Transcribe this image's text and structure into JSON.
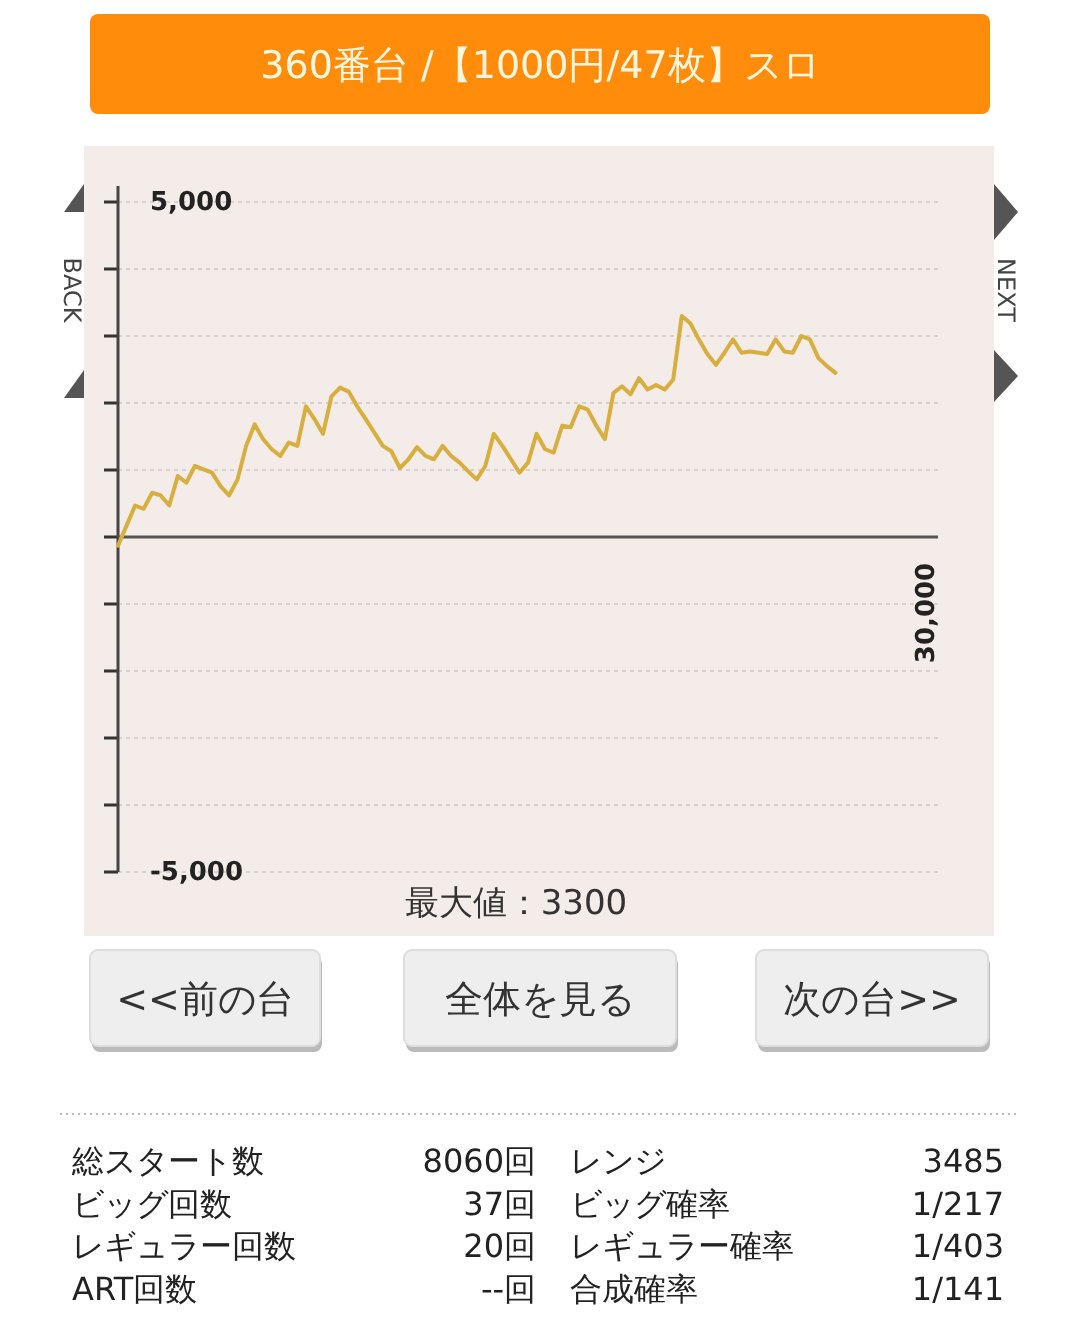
{
  "chart_data": {
    "type": "line",
    "title": "360番台 /【1000円/47枚】スロ",
    "categories": [
      null,
      null,
      null,
      null,
      null,
      null,
      null,
      null,
      null,
      null,
      null,
      null,
      null,
      null,
      null,
      null,
      null,
      null,
      null,
      null,
      null,
      null,
      null,
      null,
      null,
      null,
      null,
      null,
      null,
      null,
      null,
      null,
      null,
      null,
      null,
      null,
      null,
      null,
      null,
      null,
      null,
      null,
      null,
      null,
      null,
      null,
      null,
      null,
      null,
      null,
      null,
      null,
      null,
      null,
      null,
      null,
      null,
      null,
      null,
      null,
      null,
      null,
      null,
      null,
      null,
      null,
      null,
      null,
      null,
      null,
      null,
      null,
      null,
      null,
      null,
      null,
      null,
      null,
      null,
      null,
      null,
      null,
      null,
      null,
      null
    ],
    "values": [
      -130,
      170,
      470,
      420,
      660,
      620,
      470,
      910,
      810,
      1060,
      1010,
      960,
      760,
      620,
      860,
      1360,
      1680,
      1460,
      1310,
      1210,
      1410,
      1360,
      1950,
      1760,
      1540,
      2100,
      2230,
      2170,
      1950,
      1760,
      1560,
      1360,
      1280,
      1030,
      1160,
      1340,
      1210,
      1160,
      1360,
      1210,
      1110,
      980,
      860,
      1060,
      1540,
      1360,
      1160,
      960,
      1110,
      1540,
      1310,
      1260,
      1660,
      1640,
      1950,
      1900,
      1660,
      1460,
      2150,
      2250,
      2130,
      2370,
      2200,
      2270,
      2200,
      2350,
      3300,
      3190,
      2950,
      2730,
      2570,
      2750,
      2950,
      2750,
      2770,
      2750,
      2730,
      2950,
      2770,
      2750,
      3000,
      2950,
      2670,
      2550,
      2450
    ],
    "color": "#d8ae3e",
    "ylim": [
      -5000,
      5000
    ],
    "yticks": [
      {
        "value": -5000,
        "label": "-5,000"
      },
      {
        "value": -4000,
        "label": null
      },
      {
        "value": -3000,
        "label": null
      },
      {
        "value": -2000,
        "label": null
      },
      {
        "value": -1000,
        "label": null
      },
      {
        "value": 0,
        "label": null
      },
      {
        "value": 1000,
        "label": null
      },
      {
        "value": 2000,
        "label": null
      },
      {
        "value": 3000,
        "label": null
      },
      {
        "value": 4000,
        "label": null
      },
      {
        "value": 5000,
        "label": "5,000"
      }
    ],
    "grid": "y",
    "annotations": [
      "最大値：3300",
      "BACK",
      "NEXT",
      "<<前の台",
      "全体を見る",
      "次の台>>",
      "総スタート数",
      "8060回",
      "レンジ",
      "3485",
      "ビッグ回数",
      "37回",
      "ビッグ確率",
      "1/217",
      "レギュラー回数",
      "20回",
      "レギュラー確率",
      "1/403",
      "ART回数",
      "--回",
      "合成確率",
      "1/141",
      "30,000"
    ]
  }
}
